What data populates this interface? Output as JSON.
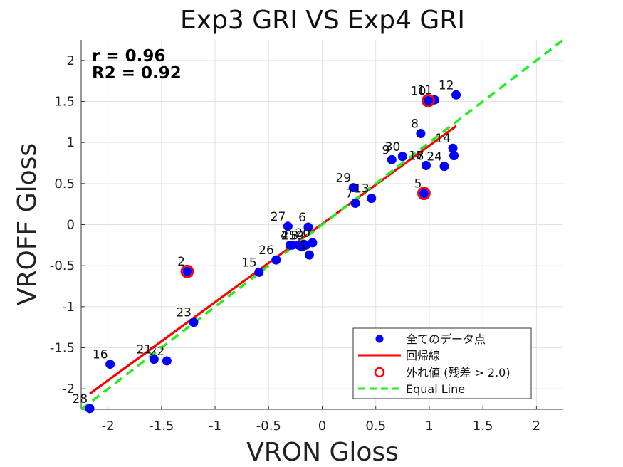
{
  "chart_data": {
    "type": "scatter",
    "title": "Exp3 GRI VS Exp4 GRI",
    "xlabel": "VRON Gloss",
    "ylabel": "VROFF Gloss",
    "xlim": [
      -2.25,
      2.25
    ],
    "ylim": [
      -2.25,
      2.25
    ],
    "xticks": [
      -2,
      -1.5,
      -1,
      -0.5,
      0,
      0.5,
      1,
      1.5,
      2
    ],
    "yticks": [
      -2,
      -1.5,
      -1,
      -0.5,
      0,
      0.5,
      1,
      1.5,
      2
    ],
    "xtick_labels": [
      "-2",
      "-1.5",
      "-1",
      "-0.5",
      "0",
      "0.5",
      "1",
      "1.5",
      "2"
    ],
    "ytick_labels": [
      "-2",
      "-1.5",
      "-1",
      "-0.5",
      "0",
      "0.5",
      "1",
      "1.5",
      "2"
    ],
    "grid": true,
    "stats": {
      "r": "r = 0.96",
      "r2": "R2 = 0.92"
    },
    "points": [
      {
        "label": "1",
        "x": -0.12,
        "y": -0.37
      },
      {
        "label": "2",
        "x": -1.26,
        "y": -0.57
      },
      {
        "label": "3",
        "x": -0.2,
        "y": -0.25
      },
      {
        "label": "4",
        "x": -0.3,
        "y": -0.25
      },
      {
        "label": "5",
        "x": 0.95,
        "y": 0.38
      },
      {
        "label": "6",
        "x": -0.13,
        "y": -0.03
      },
      {
        "label": "7",
        "x": 0.31,
        "y": 0.26
      },
      {
        "label": "8",
        "x": 0.92,
        "y": 1.11
      },
      {
        "label": "9",
        "x": 0.65,
        "y": 0.79
      },
      {
        "label": "10",
        "x": 0.99,
        "y": 1.51
      },
      {
        "label": "11",
        "x": 1.05,
        "y": 1.52
      },
      {
        "label": "12",
        "x": 1.25,
        "y": 1.58
      },
      {
        "label": "13",
        "x": 0.46,
        "y": 0.32
      },
      {
        "label": "14",
        "x": 1.22,
        "y": 0.93
      },
      {
        "label": "15",
        "x": -0.59,
        "y": -0.58
      },
      {
        "label": "16",
        "x": -1.98,
        "y": -1.7
      },
      {
        "label": "17",
        "x": 0.97,
        "y": 0.72
      },
      {
        "label": "18",
        "x": 0.97,
        "y": 0.72
      },
      {
        "label": "19",
        "x": -0.15,
        "y": -0.25
      },
      {
        "label": "20",
        "x": -0.09,
        "y": -0.22
      },
      {
        "label": "21",
        "x": -1.57,
        "y": -1.64
      },
      {
        "label": "22",
        "x": -1.45,
        "y": -1.66
      },
      {
        "label": "23",
        "x": -1.2,
        "y": -1.19
      },
      {
        "label": "24",
        "x": 1.14,
        "y": 0.71
      },
      {
        "label": "25",
        "x": -0.22,
        "y": -0.25
      },
      {
        "label": "26",
        "x": -0.43,
        "y": -0.43
      },
      {
        "label": "27",
        "x": -0.32,
        "y": -0.02
      },
      {
        "label": "28",
        "x": -2.17,
        "y": -2.24
      },
      {
        "label": "29",
        "x": 0.29,
        "y": 0.45
      },
      {
        "label": "30",
        "x": 0.75,
        "y": 0.83
      }
    ],
    "extra_points": [
      {
        "x": -0.28,
        "y": -0.25
      },
      {
        "x": -0.17,
        "y": -0.24
      },
      {
        "x": -0.19,
        "y": -0.27
      },
      {
        "x": 1.23,
        "y": 0.84
      }
    ],
    "outliers": [
      {
        "label": "2",
        "x": -1.26,
        "y": -0.57
      },
      {
        "label": "5",
        "x": 0.95,
        "y": 0.38
      },
      {
        "label": "10",
        "x": 0.99,
        "y": 1.51
      }
    ],
    "regression": {
      "x": [
        -2.17,
        1.25
      ],
      "y": [
        -2.06,
        1.2
      ]
    },
    "equal_line": {
      "x": [
        -2.25,
        2.25
      ],
      "y": [
        -2.25,
        2.25
      ]
    },
    "legend": {
      "placement": "bottom-right",
      "entries": [
        {
          "name": "全てのデータ点",
          "kind": "point",
          "color": "#0000ff"
        },
        {
          "name": "回帰線",
          "kind": "line",
          "color": "#ff0000"
        },
        {
          "name": "外れ値 (残差 > 2.0)",
          "kind": "ring",
          "color": "#ff0000"
        },
        {
          "name": "Equal Line",
          "kind": "dashed",
          "color": "#22ee22"
        }
      ]
    },
    "colors": {
      "points": "#0000ff",
      "regression": "#ff0000",
      "outlier": "#ff0000",
      "equal_line": "#22ee22",
      "grid": "#e3e3e3",
      "axis": "#333333"
    }
  }
}
